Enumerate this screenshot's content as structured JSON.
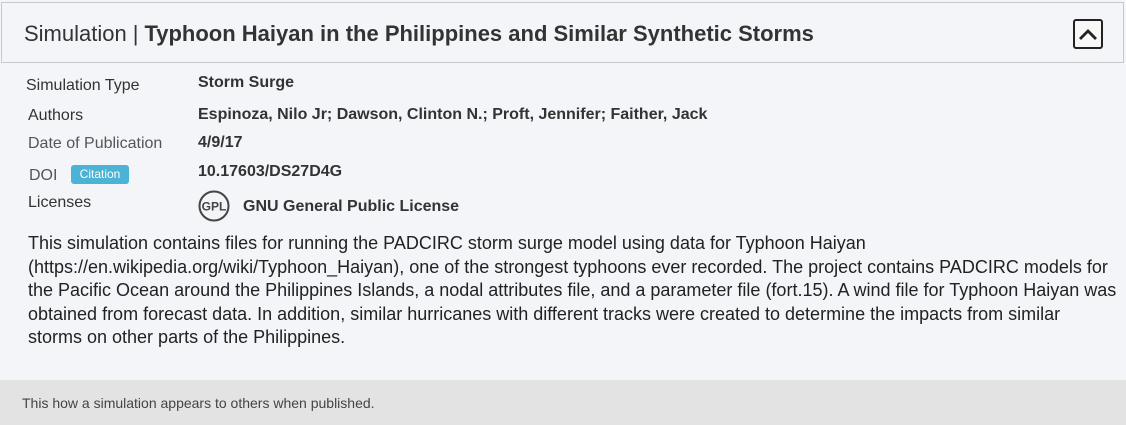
{
  "header": {
    "kind": "Simulation",
    "separator": "|",
    "title": "Typhoon Haiyan in the Philippines and Similar Synthetic Storms",
    "collapse_icon": "chevron-up-icon"
  },
  "meta": {
    "simulation_type": {
      "label": "Simulation Type",
      "value": "Storm Surge"
    },
    "authors": {
      "label": "Authors",
      "value": "Espinoza, Nilo Jr; Dawson, Clinton N.; Proft, Jennifer; Faither, Jack"
    },
    "date": {
      "label": "Date of Publication",
      "value": "4/9/17"
    },
    "doi": {
      "label": "DOI",
      "badge": "Citation",
      "value": "10.17603/DS27D4G"
    },
    "licenses": {
      "label": "Licenses",
      "icon_text": "GPL",
      "value": "GNU General Public License"
    }
  },
  "description": "This simulation contains files for running the PADCIRC storm surge model using data for Typhoon Haiyan (https://en.wikipedia.org/wiki/Typhoon_Haiyan), one of the strongest typhoons ever recorded. The project contains PADCIRC models for the Pacific Ocean around the Philippines Islands, a nodal attributes file, and a parameter file (fort.15). A wind file for Typhoon Haiyan was obtained from forecast data. In addition, similar hurricanes with different tracks were created to determine the impacts from similar storms on other parts of the Philippines.",
  "footer": {
    "note": "This how a simulation appears to others when published."
  },
  "colors": {
    "badge": "#4ab3d6",
    "footer_bg": "#e3e3e3",
    "card_bg": "#f4f5f8"
  }
}
